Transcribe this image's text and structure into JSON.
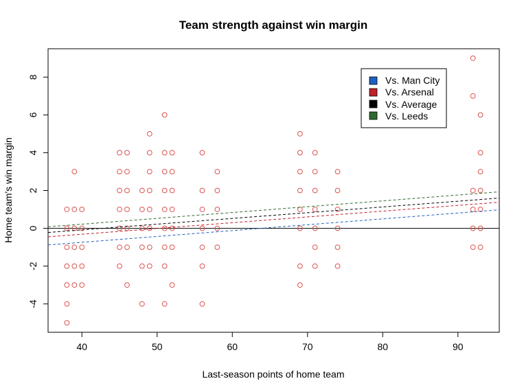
{
  "chart_data": {
    "type": "scatter",
    "title": "Team strength against win margin",
    "xlabel": "Last-season points of home team",
    "ylabel": "Home team's win margin",
    "xlim": [
      35.5,
      95.5
    ],
    "ylim": [
      -5.5,
      9.5
    ],
    "xticks": [
      40,
      50,
      60,
      70,
      80,
      90
    ],
    "yticks": [
      -4,
      -2,
      0,
      2,
      4,
      6,
      8
    ],
    "grid": false,
    "reference_line_y": 0,
    "point_color": "#d9534f",
    "points": [
      [
        38,
        1
      ],
      [
        38,
        0
      ],
      [
        38,
        -1
      ],
      [
        38,
        -2
      ],
      [
        38,
        -3
      ],
      [
        38,
        -4
      ],
      [
        38,
        -5
      ],
      [
        39,
        3
      ],
      [
        39,
        1
      ],
      [
        39,
        0
      ],
      [
        39,
        -1
      ],
      [
        39,
        -2
      ],
      [
        39,
        -3
      ],
      [
        40,
        1
      ],
      [
        40,
        0
      ],
      [
        40,
        -1
      ],
      [
        40,
        -2
      ],
      [
        40,
        -3
      ],
      [
        45,
        4
      ],
      [
        45,
        3
      ],
      [
        45,
        2
      ],
      [
        45,
        1
      ],
      [
        45,
        0
      ],
      [
        45,
        -1
      ],
      [
        45,
        -2
      ],
      [
        46,
        4
      ],
      [
        46,
        3
      ],
      [
        46,
        2
      ],
      [
        46,
        1
      ],
      [
        46,
        0
      ],
      [
        46,
        -1
      ],
      [
        46,
        -3
      ],
      [
        48,
        2
      ],
      [
        48,
        1
      ],
      [
        48,
        0
      ],
      [
        48,
        -1
      ],
      [
        48,
        -2
      ],
      [
        48,
        -4
      ],
      [
        49,
        5
      ],
      [
        49,
        4
      ],
      [
        49,
        3
      ],
      [
        49,
        2
      ],
      [
        49,
        1
      ],
      [
        49,
        0
      ],
      [
        49,
        -1
      ],
      [
        49,
        -2
      ],
      [
        51,
        6
      ],
      [
        51,
        4
      ],
      [
        51,
        3
      ],
      [
        51,
        2
      ],
      [
        51,
        1
      ],
      [
        51,
        0
      ],
      [
        51,
        -1
      ],
      [
        51,
        -2
      ],
      [
        51,
        -4
      ],
      [
        52,
        4
      ],
      [
        52,
        3
      ],
      [
        52,
        2
      ],
      [
        52,
        1
      ],
      [
        52,
        0
      ],
      [
        52,
        -1
      ],
      [
        52,
        -3
      ],
      [
        56,
        4
      ],
      [
        56,
        2
      ],
      [
        56,
        1
      ],
      [
        56,
        0
      ],
      [
        56,
        -1
      ],
      [
        56,
        -2
      ],
      [
        56,
        -4
      ],
      [
        58,
        3
      ],
      [
        58,
        2
      ],
      [
        58,
        1
      ],
      [
        58,
        0
      ],
      [
        58,
        -1
      ],
      [
        69,
        5
      ],
      [
        69,
        4
      ],
      [
        69,
        3
      ],
      [
        69,
        2
      ],
      [
        69,
        1
      ],
      [
        69,
        0
      ],
      [
        69,
        -2
      ],
      [
        69,
        -3
      ],
      [
        71,
        4
      ],
      [
        71,
        3
      ],
      [
        71,
        2
      ],
      [
        71,
        1
      ],
      [
        71,
        0
      ],
      [
        71,
        -1
      ],
      [
        71,
        -2
      ],
      [
        74,
        3
      ],
      [
        74,
        2
      ],
      [
        74,
        1
      ],
      [
        74,
        0
      ],
      [
        74,
        -1
      ],
      [
        74,
        -2
      ],
      [
        92,
        9
      ],
      [
        92,
        7
      ],
      [
        92,
        2
      ],
      [
        92,
        1
      ],
      [
        92,
        0
      ],
      [
        92,
        -1
      ],
      [
        93,
        6
      ],
      [
        93,
        4
      ],
      [
        93,
        3
      ],
      [
        93,
        2
      ],
      [
        93,
        1
      ],
      [
        93,
        0
      ],
      [
        93,
        -1
      ]
    ],
    "series": [
      {
        "name": "Vs. Man City",
        "color": "#1f5fbf",
        "x": [
          35.5,
          95.5
        ],
        "y": [
          -0.88,
          0.98
        ]
      },
      {
        "name": "Vs. Arsenal",
        "color": "#c0202a",
        "x": [
          35.5,
          95.5
        ],
        "y": [
          -0.45,
          1.38
        ]
      },
      {
        "name": "Vs. Average",
        "color": "#000000",
        "x": [
          35.5,
          95.5
        ],
        "y": [
          -0.22,
          1.6
        ]
      },
      {
        "name": "Vs. Leeds",
        "color": "#2e6b2e",
        "x": [
          35.5,
          95.5
        ],
        "y": [
          0.08,
          1.93
        ]
      }
    ],
    "legend_position": "top-right"
  }
}
